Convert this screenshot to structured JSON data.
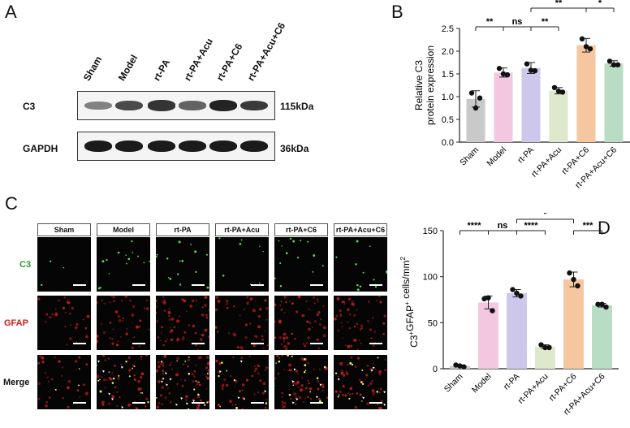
{
  "panels": {
    "a": "A",
    "b": "B",
    "c": "C",
    "d": "D"
  },
  "groups": [
    "Sham",
    "Model",
    "rt-PA",
    "rt-PA+Acu",
    "rt-PA+C6",
    "rt-PA+Acu+C6"
  ],
  "western": {
    "rows": [
      {
        "label": "C3",
        "kda": "115kDa",
        "intensity": [
          0.35,
          0.7,
          0.85,
          0.55,
          0.95,
          0.8
        ]
      },
      {
        "label": "GAPDH",
        "kda": "36kDa",
        "intensity": [
          1,
          1,
          1,
          1,
          1,
          1
        ]
      }
    ]
  },
  "if_rows": [
    "C3",
    "GFAP",
    "Merge"
  ],
  "colors": {
    "Sham": "#c9c9c9",
    "Model": "#f3c7df",
    "rt-PA": "#cdc7ec",
    "rt-PA+Acu": "#dde8cc",
    "rt-PA+C6": "#f6c79f",
    "rt-PA+Acu+C6": "#b9dcc4",
    "c3_label": "#2a9a2a",
    "gfap_label": "#cc2020"
  },
  "chart_data": [
    {
      "type": "bar",
      "panel": "B",
      "categories": [
        "Sham",
        "Model",
        "rt-PA",
        "rt-PA+Acu",
        "rt-PA+C6",
        "rt-PA+Acu+C6"
      ],
      "values": [
        0.95,
        1.53,
        1.63,
        1.13,
        2.13,
        1.73
      ],
      "errors": [
        0.18,
        0.1,
        0.12,
        0.07,
        0.15,
        0.06
      ],
      "points": [
        [
          1.08,
          0.97,
          0.75
        ],
        [
          1.62,
          1.48,
          1.5
        ],
        [
          1.72,
          1.57,
          1.58
        ],
        [
          1.2,
          1.1,
          1.12
        ],
        [
          2.27,
          2.05,
          2.1
        ],
        [
          1.78,
          1.7,
          1.7
        ]
      ],
      "ylabel": "Relative C3 protein expression",
      "ylabel_lines": [
        "Relative C3",
        "protein expression"
      ],
      "ylim": [
        0,
        2.5
      ],
      "yticks": [
        "0.0",
        "0.5",
        "1.0",
        "1.5",
        "2.0",
        "2.5"
      ],
      "sig": [
        {
          "from": 0,
          "to": 1,
          "level": 1,
          "label": "**"
        },
        {
          "from": 1,
          "to": 2,
          "level": 1,
          "label": "ns"
        },
        {
          "from": 2,
          "to": 3,
          "level": 1,
          "label": "**"
        },
        {
          "from": 2,
          "to": 4,
          "level": 2,
          "label": "**"
        },
        {
          "from": 4,
          "to": 5,
          "level": 2,
          "label": "*"
        }
      ]
    },
    {
      "type": "bar",
      "panel": "D",
      "categories": [
        "Sham",
        "Model",
        "rt-PA",
        "rt-PA+Acu",
        "rt-PA+C6",
        "rt-PA+Acu+C6"
      ],
      "values": [
        3,
        72,
        82,
        24,
        97,
        69
      ],
      "errors": [
        1,
        7,
        4,
        2,
        8,
        2
      ],
      "points": [
        [
          4,
          2,
          3
        ],
        [
          76,
          63,
          77
        ],
        [
          86,
          79,
          82
        ],
        [
          26,
          23,
          23
        ],
        [
          104,
          90,
          97
        ],
        [
          70,
          67,
          70
        ]
      ],
      "ylabel": "C3+GFAP+ cells/mm2",
      "ylabel_main": "C3",
      "ylabel_sup1": "+",
      "ylabel_mid": "GFAP",
      "ylabel_sup2": "+",
      "ylabel_end": " cells/mm",
      "ylabel_sup3": "2",
      "ylim": [
        0,
        150
      ],
      "yticks": [
        "0",
        "50",
        "100",
        "150"
      ],
      "sig": [
        {
          "from": 0,
          "to": 1,
          "level": 1,
          "label": "****"
        },
        {
          "from": 1,
          "to": 2,
          "level": 1,
          "label": "ns"
        },
        {
          "from": 2,
          "to": 3,
          "level": 1,
          "label": "****"
        },
        {
          "from": 2,
          "to": 4,
          "level": 2,
          "label": "*"
        },
        {
          "from": 4,
          "to": 5,
          "level": 1,
          "label": "***"
        }
      ]
    }
  ]
}
